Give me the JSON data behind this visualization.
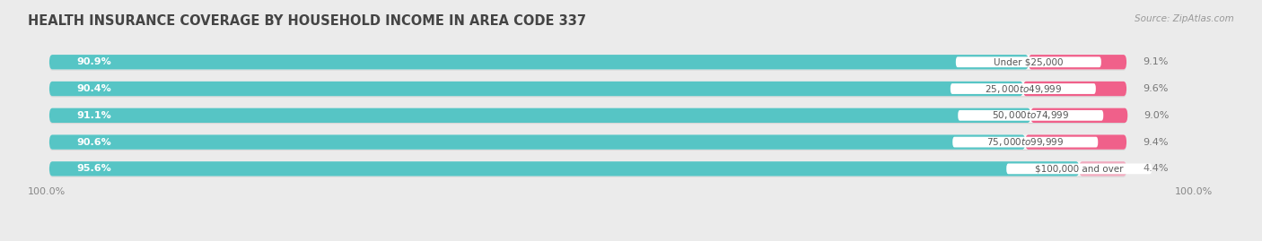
{
  "title": "HEALTH INSURANCE COVERAGE BY HOUSEHOLD INCOME IN AREA CODE 337",
  "source": "Source: ZipAtlas.com",
  "categories": [
    "Under $25,000",
    "$25,000 to $49,999",
    "$50,000 to $74,999",
    "$75,000 to $99,999",
    "$100,000 and over"
  ],
  "with_coverage": [
    90.9,
    90.4,
    91.1,
    90.6,
    95.6
  ],
  "without_coverage": [
    9.1,
    9.6,
    9.0,
    9.4,
    4.4
  ],
  "color_with": "#56C5C5",
  "color_with_dark": "#3AACAC",
  "color_without": "#F0608A",
  "color_without_light": "#F0AABE",
  "bg_color": "#ebebeb",
  "bar_bg": "#f8f8f8",
  "bar_shadow": "#d8d8d8",
  "title_fontsize": 10.5,
  "source_fontsize": 7.5,
  "label_fontsize": 8,
  "cat_fontsize": 7.5,
  "bar_height": 0.55,
  "x_left_label": "100.0%",
  "x_right_label": "100.0%",
  "fig_width": 14.06,
  "fig_height": 2.69,
  "dpi": 100
}
